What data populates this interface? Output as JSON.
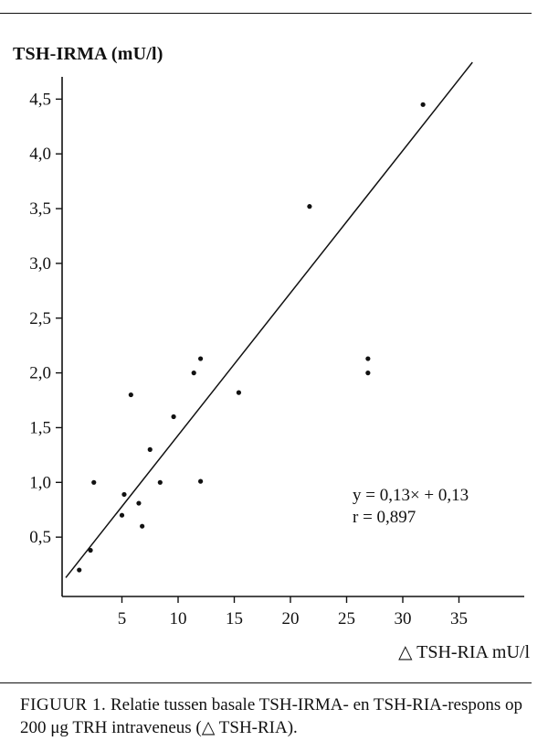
{
  "chart_data": {
    "type": "scatter",
    "ylabel": "TSH-IRMA (mU/l)",
    "xlabel": "△ TSH-RIA mU/l",
    "xlim": [
      0,
      41
    ],
    "ylim": [
      0,
      4.85
    ],
    "x_ticks": [
      5,
      10,
      15,
      20,
      25,
      30,
      35
    ],
    "x_tick_labels": [
      "5",
      "10",
      "15",
      "20",
      "25",
      "30",
      "35"
    ],
    "y_ticks": [
      0.5,
      1.0,
      1.5,
      2.0,
      2.5,
      3.0,
      3.5,
      4.0,
      4.5
    ],
    "y_tick_labels": [
      "0,5",
      "1,0",
      "1,5",
      "2,0",
      "2,5",
      "3,0",
      "3,5",
      "4,0",
      "4,5"
    ],
    "grid": false,
    "points": [
      {
        "x": 1.2,
        "y": 0.2
      },
      {
        "x": 2.2,
        "y": 0.38
      },
      {
        "x": 2.5,
        "y": 1.0
      },
      {
        "x": 5.0,
        "y": 0.7
      },
      {
        "x": 5.2,
        "y": 0.89
      },
      {
        "x": 5.8,
        "y": 1.8
      },
      {
        "x": 6.5,
        "y": 0.81
      },
      {
        "x": 6.8,
        "y": 0.6
      },
      {
        "x": 7.5,
        "y": 1.3
      },
      {
        "x": 8.4,
        "y": 1.0
      },
      {
        "x": 9.6,
        "y": 1.6
      },
      {
        "x": 11.4,
        "y": 2.0
      },
      {
        "x": 12.0,
        "y": 2.13
      },
      {
        "x": 12.0,
        "y": 1.01
      },
      {
        "x": 15.4,
        "y": 1.82
      },
      {
        "x": 21.7,
        "y": 3.52
      },
      {
        "x": 26.9,
        "y": 2.13
      },
      {
        "x": 26.9,
        "y": 2.0
      },
      {
        "x": 31.8,
        "y": 4.45
      }
    ],
    "regression": {
      "slope": 0.13,
      "intercept": 0.13,
      "x_range": [
        0,
        36.2
      ]
    },
    "annotations": [
      "y = 0,13× + 0,13",
      "r = 0,897"
    ]
  },
  "caption": {
    "label": "FIGUUR 1.",
    "text": " Relatie tussen basale TSH-IRMA- en TSH-RIA-respons op 200 μg TRH intraveneus (△ TSH-RIA)."
  }
}
